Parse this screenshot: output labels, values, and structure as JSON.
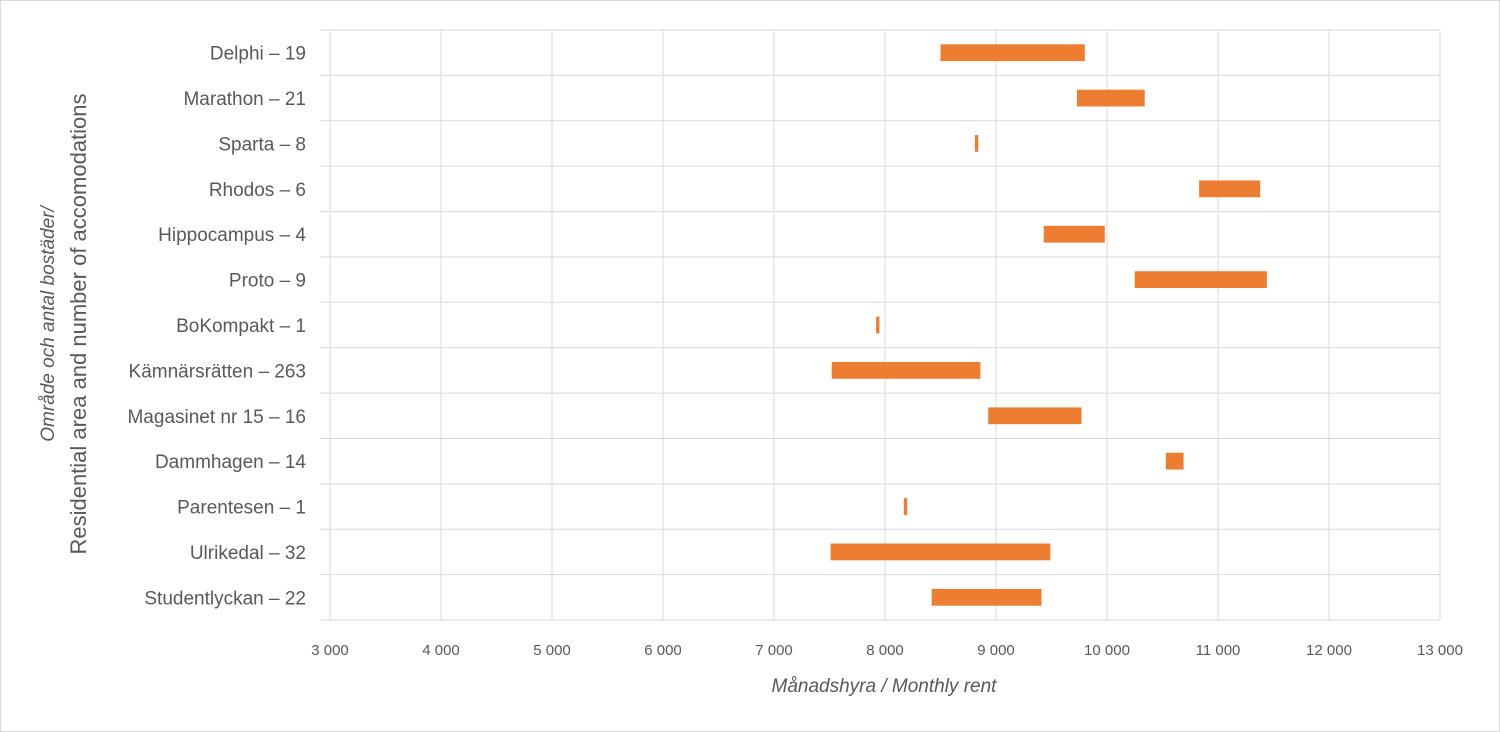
{
  "chart_data": {
    "type": "bar",
    "orientation": "horizontal-floating-range",
    "categories": [
      "Delphi – 19",
      "Marathon – 21",
      "Sparta – 8",
      "Rhodos – 6",
      "Hippocampus – 4",
      "Proto – 9",
      "BoKompakt – 1",
      "Kämnärsrätten – 263",
      "Magasinet nr 15 – 16",
      "Dammhagen – 14",
      "Parentesen – 1",
      "Ulrikedal – 32",
      "Studentlyckan – 22"
    ],
    "ranges": [
      [
        8500,
        9800
      ],
      [
        9730,
        10340
      ],
      [
        8810,
        8840
      ],
      [
        10830,
        11380
      ],
      [
        9430,
        9980
      ],
      [
        10250,
        11440
      ],
      [
        7920,
        7950
      ],
      [
        7520,
        8860
      ],
      [
        8930,
        9770
      ],
      [
        10530,
        10690
      ],
      [
        8170,
        8200
      ],
      [
        7510,
        9490
      ],
      [
        8420,
        9410
      ]
    ],
    "xlim": [
      3000,
      13000
    ],
    "xticks": [
      3000,
      4000,
      5000,
      6000,
      7000,
      8000,
      9000,
      10000,
      11000,
      12000,
      13000
    ],
    "xtick_labels": [
      "3 000",
      "4 000",
      "5 000",
      "6 000",
      "7 000",
      "8 000",
      "9 000",
      "10 000",
      "11 000",
      "12 000",
      "13 000"
    ],
    "xlabel": "Månadshyra / Monthly rent",
    "ylabel_line1": "Område och antal bostäder/",
    "ylabel_line2": "Residential area and number of accomodations",
    "title": "",
    "bar_color": "#ED7D31",
    "grid": true,
    "grid_color": "#d9d9d9"
  }
}
